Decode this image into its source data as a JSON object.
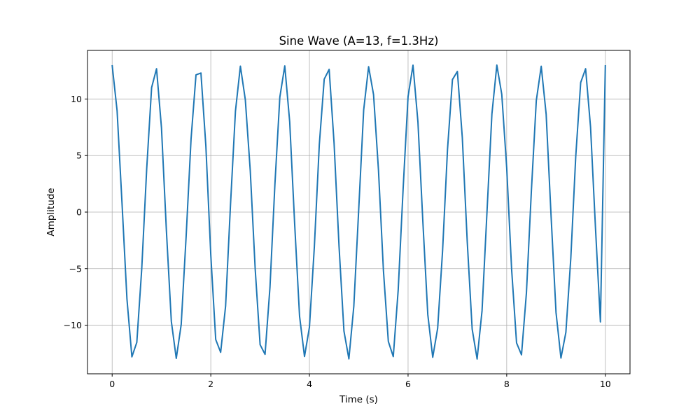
{
  "chart_data": {
    "type": "line",
    "title": "Sine Wave (A=13, f=1.3Hz)",
    "xlabel": "Time (s)",
    "ylabel": "Amplitude",
    "xlim": [
      -0.5,
      10.5
    ],
    "ylim": [
      -14.3,
      14.3
    ],
    "xticks": [
      0,
      2,
      4,
      6,
      8,
      10
    ],
    "yticks": [
      -10,
      -5,
      0,
      5,
      10
    ],
    "xtick_labels": [
      "0",
      "2",
      "4",
      "6",
      "8",
      "10"
    ],
    "ytick_labels": [
      "−10",
      "−5",
      "0",
      "5",
      "10"
    ],
    "grid": true,
    "series": [
      {
        "color": "#1f77b4",
        "x": [
          0.0,
          0.1,
          0.2,
          0.3,
          0.4,
          0.5,
          0.6,
          0.7,
          0.8,
          0.9,
          1.0,
          1.1,
          1.2,
          1.3,
          1.4,
          1.5,
          1.6,
          1.7,
          1.8,
          1.9,
          2.0,
          2.1,
          2.2,
          2.3,
          2.4,
          2.5,
          2.6,
          2.7,
          2.8,
          2.9,
          3.0,
          3.1,
          3.2,
          3.3,
          3.4,
          3.5,
          3.6,
          3.7,
          3.8,
          3.9,
          4.0,
          4.1,
          4.2,
          4.3,
          4.4,
          4.5,
          4.6,
          4.7,
          4.8,
          4.9,
          5.0,
          5.1,
          5.2,
          5.3,
          5.4,
          5.5,
          5.6,
          5.7,
          5.8,
          5.9,
          6.0,
          6.1,
          6.2,
          6.3,
          6.4,
          6.5,
          6.6,
          6.7,
          6.8,
          6.9,
          7.0,
          7.1,
          7.2,
          7.3,
          7.4,
          7.5,
          7.6,
          7.7,
          7.8,
          7.9,
          8.0,
          8.1,
          8.2,
          8.3,
          8.4,
          8.5,
          8.6,
          8.7,
          8.8,
          8.9,
          9.0,
          9.1,
          9.2,
          9.3,
          9.4,
          9.5,
          9.6,
          9.7,
          9.8,
          9.9,
          10.0
        ],
        "y": [
          13.0,
          8.97,
          0.78,
          -7.68,
          -12.8,
          -11.52,
          -5.0,
          3.8,
          11.01,
          12.68,
          7.46,
          -1.66,
          -9.67,
          -12.94,
          -9.94,
          -2.14,
          6.47,
          12.14,
          12.3,
          5.85,
          -3.8,
          -11.27,
          -12.4,
          -8.32,
          0.69,
          8.93,
          12.91,
          9.94,
          3.68,
          -5.02,
          -11.73,
          -12.58,
          -6.64,
          2.46,
          10.17,
          12.93,
          7.98,
          -1.0,
          -9.21,
          -12.77,
          -10.18,
          -3.05,
          5.95,
          11.76,
          12.62,
          6.08,
          -3.0,
          -10.52,
          -12.98,
          -8.33,
          0.3,
          9.04,
          12.86,
          10.39,
          3.72,
          -5.14,
          -11.44,
          -12.78,
          -6.88,
          2.08,
          10.22,
          12.99,
          7.97,
          -0.85,
          -9.06,
          -12.84,
          -10.27,
          -3.4,
          5.57,
          11.72,
          12.44,
          6.58,
          -2.62,
          -10.36,
          -12.99,
          -8.72,
          0.0,
          8.67,
          13.0,
          10.41,
          3.92,
          -5.08,
          -11.57,
          -12.62,
          -7.13,
          1.85,
          9.86,
          12.9,
          8.65,
          -0.36,
          -8.88,
          -12.91,
          -10.63,
          -4.06,
          4.93,
          11.46,
          12.68,
          7.52,
          -1.38,
          -9.71,
          13.0
        ]
      }
    ]
  }
}
